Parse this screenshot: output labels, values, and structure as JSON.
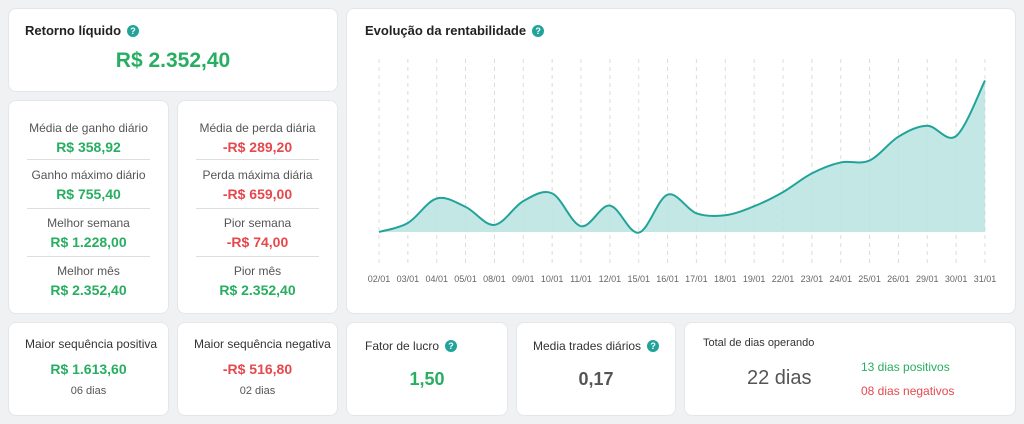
{
  "net_return": {
    "title": "Retorno líquido",
    "value": "R$ 2.352,40"
  },
  "gain_stats": [
    {
      "label": "Média de ganho diário",
      "value": "R$ 358,92"
    },
    {
      "label": "Ganho máximo diário",
      "value": "R$ 755,40"
    },
    {
      "label": "Melhor semana",
      "value": "R$ 1.228,00"
    },
    {
      "label": "Melhor mês",
      "value": "R$ 2.352,40"
    }
  ],
  "loss_stats": [
    {
      "label": "Média de perda diária",
      "value": "-R$ 289,20"
    },
    {
      "label": "Perda máxima diária",
      "value": "-R$ 659,00"
    },
    {
      "label": "Pior semana",
      "value": "-R$ 74,00"
    },
    {
      "label": "Pior mês",
      "value": "R$ 2.352,40"
    }
  ],
  "positive_streak": {
    "title": "Maior sequência positiva",
    "value": "R$ 1.613,60",
    "days": "06 dias"
  },
  "negative_streak": {
    "title": "Maior sequência negativa",
    "value": "-R$ 516,80",
    "days": "02 dias"
  },
  "profit_factor": {
    "title": "Fator de lucro",
    "value": "1,50"
  },
  "daily_trades": {
    "title": "Media trades diários",
    "value": "0,17"
  },
  "days_operating": {
    "title": "Total de dias operando",
    "value": "22 dias",
    "positive": "13 dias positivos",
    "negative": "08 dias negativos"
  },
  "chart_title": "Evolução da rentabilidade",
  "colors": {
    "accent": "#22a39a",
    "fill": "#b7e3df",
    "green": "#27ae60",
    "red": "#e5484d"
  },
  "chart_data": {
    "type": "area",
    "title": "Evolução da rentabilidade",
    "categories": [
      "02/01",
      "03/01",
      "04/01",
      "05/01",
      "08/01",
      "09/01",
      "10/01",
      "11/01",
      "12/01",
      "15/01",
      "16/01",
      "17/01",
      "18/01",
      "19/01",
      "22/01",
      "23/01",
      "24/01",
      "25/01",
      "26/01",
      "29/01",
      "30/01",
      "31/01"
    ],
    "values": [
      0,
      140,
      520,
      390,
      110,
      480,
      600,
      90,
      410,
      -10,
      580,
      290,
      260,
      400,
      620,
      910,
      1080,
      1110,
      1480,
      1650,
      1490,
      2352.4
    ],
    "ylim": [
      -100,
      2500
    ],
    "grid": "vertical dashed"
  }
}
